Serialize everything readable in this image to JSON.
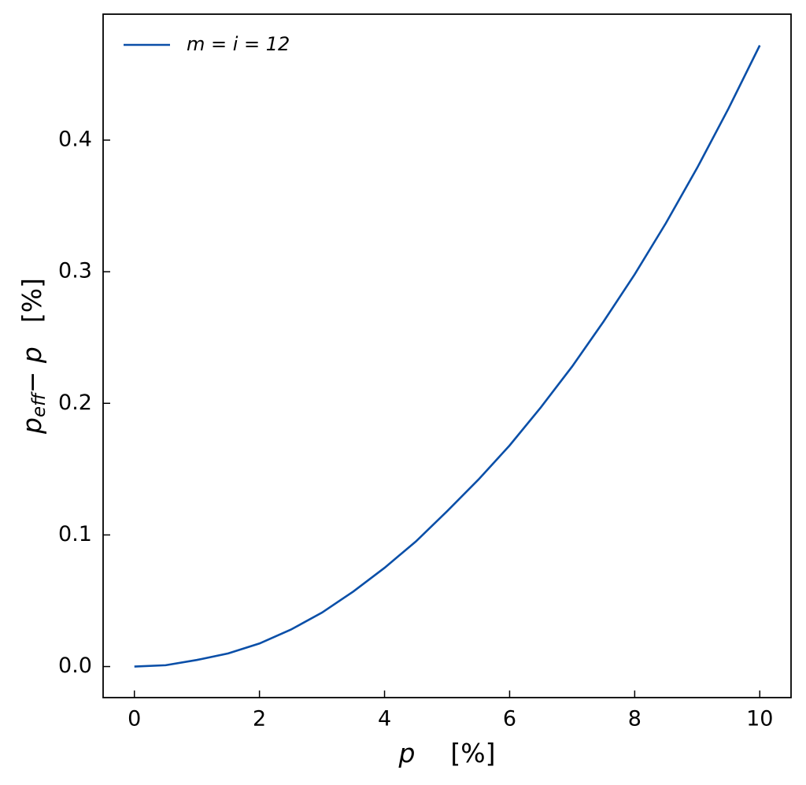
{
  "chart_data": {
    "type": "line",
    "xlabel": {
      "main": "p",
      "rest": "[%]"
    },
    "ylabel": {
      "main": "p",
      "sub": "eff",
      "rest": "− p",
      "unit": "[%]"
    },
    "x": [
      0,
      0.5,
      1,
      1.5,
      2,
      2.5,
      3,
      3.5,
      4,
      4.5,
      5,
      5.5,
      6,
      6.5,
      7,
      7.5,
      8,
      8.5,
      9,
      9.5,
      10
    ],
    "series": [
      {
        "name": "m = i = 12",
        "color": "#0a4fa8",
        "values": [
          0,
          0.001,
          0.005,
          0.01,
          0.0175,
          0.028,
          0.041,
          0.057,
          0.075,
          0.095,
          0.118,
          0.142,
          0.168,
          0.197,
          0.228,
          0.262,
          0.298,
          0.337,
          0.379,
          0.424,
          0.472
        ]
      }
    ],
    "xlim": [
      -0.5,
      10.5
    ],
    "ylim": [
      -0.0236,
      0.4957
    ],
    "xticks": [
      0,
      2,
      4,
      6,
      8,
      10
    ],
    "yticks": [
      {
        "value": 0,
        "label": "0.0"
      },
      0.1,
      0.2,
      0.3,
      0.4
    ],
    "grid": false,
    "legend": "upper left"
  }
}
